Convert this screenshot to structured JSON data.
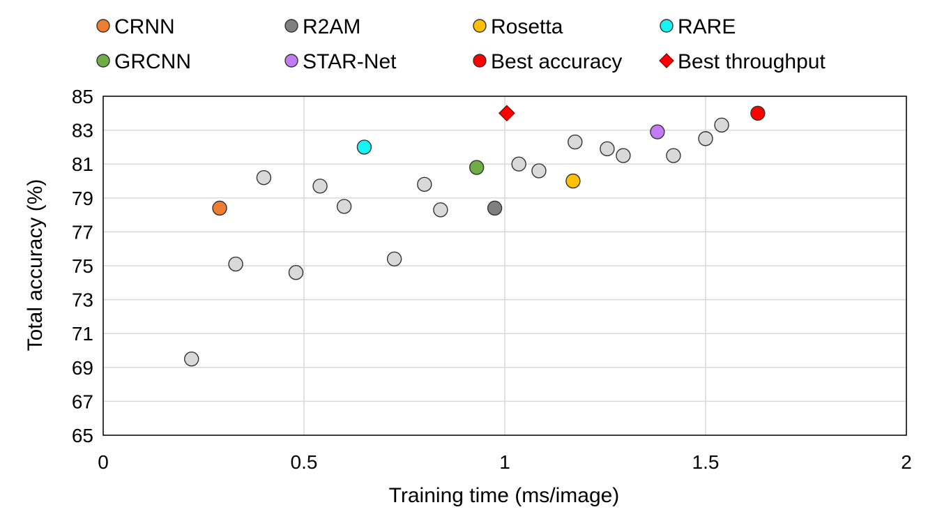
{
  "chart_data": {
    "type": "scatter",
    "xlabel": "Training time (ms/image)",
    "ylabel": "Total accuracy (%)",
    "xlim": [
      0,
      2
    ],
    "ylim": [
      65,
      85
    ],
    "x_ticks": [
      "0",
      "0.5",
      "1",
      "1.5",
      "2"
    ],
    "y_ticks": [
      "65",
      "67",
      "69",
      "71",
      "73",
      "75",
      "77",
      "79",
      "81",
      "83",
      "85"
    ],
    "grid": true,
    "legend_position": "top",
    "legend": [
      {
        "label": "CRNN",
        "marker": "circle",
        "color": "#ED7D31"
      },
      {
        "label": "R2AM",
        "marker": "circle",
        "color": "#7F7F7F"
      },
      {
        "label": "Rosetta",
        "marker": "circle",
        "color": "#FFC000"
      },
      {
        "label": "RARE",
        "marker": "circle",
        "color": "#17F2F2"
      },
      {
        "label": "GRCNN",
        "marker": "circle",
        "color": "#70AD47"
      },
      {
        "label": "STAR-Net",
        "marker": "circle",
        "color": "#C27BF2"
      },
      {
        "label": "Best accuracy",
        "marker": "circle",
        "color": "#FF0000"
      },
      {
        "label": "Best throughput",
        "marker": "diamond",
        "color": "#FF0000"
      }
    ],
    "other_color": "#D9D9D9",
    "series": [
      {
        "name": "CRNN",
        "points": [
          [
            0.29,
            78.4
          ]
        ]
      },
      {
        "name": "R2AM",
        "points": [
          [
            0.975,
            78.4
          ]
        ]
      },
      {
        "name": "Rosetta",
        "points": [
          [
            1.17,
            80.0
          ]
        ]
      },
      {
        "name": "RARE",
        "points": [
          [
            0.65,
            82.0
          ]
        ]
      },
      {
        "name": "GRCNN",
        "points": [
          [
            0.93,
            80.8
          ]
        ]
      },
      {
        "name": "STAR-Net",
        "points": [
          [
            1.38,
            82.9
          ]
        ]
      },
      {
        "name": "Best accuracy",
        "points": [
          [
            1.63,
            84.0
          ]
        ]
      },
      {
        "name": "Best throughput",
        "points": [
          [
            1.005,
            84.0
          ]
        ]
      },
      {
        "name": "",
        "points": [
          [
            0.22,
            69.5
          ],
          [
            0.33,
            75.1
          ],
          [
            0.4,
            80.2
          ],
          [
            0.48,
            74.6
          ],
          [
            0.54,
            79.7
          ],
          [
            0.6,
            78.5
          ],
          [
            0.725,
            75.4
          ],
          [
            0.8,
            79.8
          ],
          [
            0.84,
            78.3
          ],
          [
            1.035,
            81.0
          ],
          [
            1.085,
            80.6
          ],
          [
            1.175,
            82.3
          ],
          [
            1.255,
            81.9
          ],
          [
            1.295,
            81.5
          ],
          [
            1.42,
            81.5
          ],
          [
            1.5,
            82.5
          ],
          [
            1.54,
            83.3
          ]
        ]
      }
    ]
  }
}
